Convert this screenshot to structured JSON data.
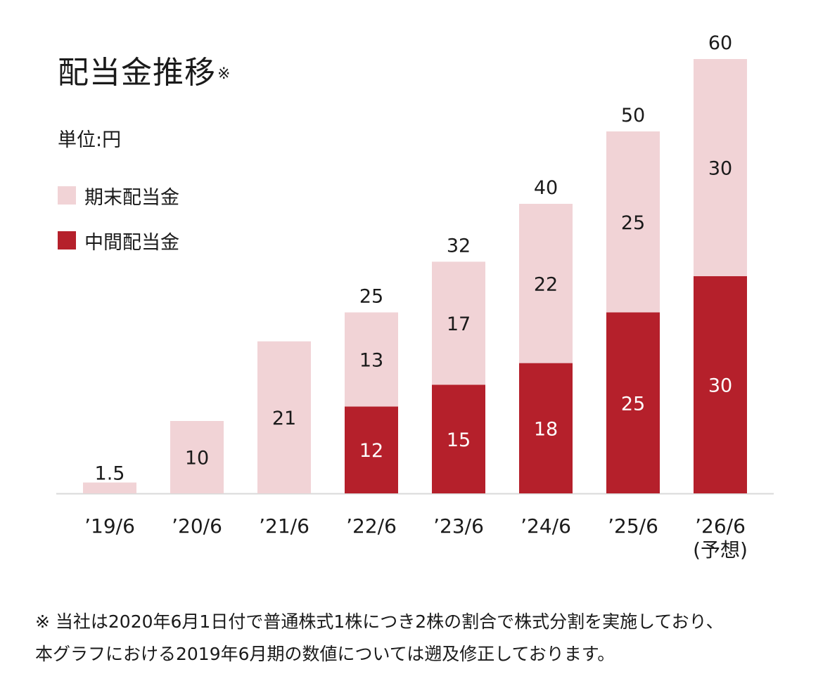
{
  "title": "配当金推移",
  "title_mark": "※",
  "unit_label": "単位:円",
  "legend": [
    {
      "label": "期末配当金",
      "color": "#f1d3d6"
    },
    {
      "label": "中間配当金",
      "color": "#b5202b"
    }
  ],
  "footnote": {
    "line1": "※ 当社は2020年6月1日付で普通株式1株につき2株の割合で株式分割を実施しており、",
    "line2": "本グラフにおける2019年6月期の数値については遡及修正しております。"
  },
  "chart_data": {
    "type": "bar",
    "stacked": true,
    "categories": [
      "’19/6",
      "’20/6",
      "’21/6",
      "’22/6",
      "’23/6",
      "’24/6",
      "’25/6",
      "’26/6"
    ],
    "category_notes": [
      "",
      "",
      "",
      "",
      "",
      "",
      "",
      "(予想)"
    ],
    "series": [
      {
        "name": "中間配当金",
        "values": [
          null,
          null,
          null,
          12,
          15,
          18,
          25,
          30
        ],
        "color": "#b5202b"
      },
      {
        "name": "期末配当金",
        "values": [
          1.5,
          10,
          21,
          13,
          17,
          22,
          25,
          30
        ],
        "color": "#f1d3d6"
      }
    ],
    "totals": [
      1.5,
      10,
      21,
      25,
      32,
      40,
      50,
      60
    ],
    "title": "配当金推移",
    "ylabel": "単位:円",
    "ylim": [
      0,
      60
    ],
    "grid": false,
    "legend_position": "top-left"
  }
}
